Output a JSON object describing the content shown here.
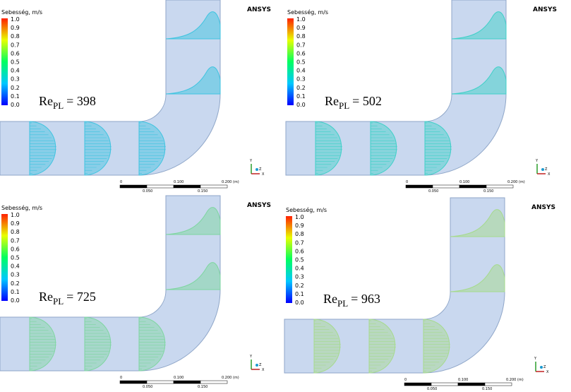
{
  "legend_title": "Sebesség, m/s",
  "colorbar_ticks": [
    "1.0",
    "0.9",
    "0.8",
    "0.7",
    "0.6",
    "0.5",
    "0.4",
    "0.3",
    "0.2",
    "0.1",
    "0.0"
  ],
  "brand": "ANSYS",
  "scale_bar": {
    "top": [
      "0",
      "0.100",
      "0.200 (m)"
    ],
    "bottom": [
      "0.050",
      "0.150"
    ]
  },
  "triad": [
    "Y",
    "X",
    "Z"
  ],
  "re_label": "Re",
  "re_subscript": "PL",
  "panels": [
    {
      "re_value": "= 398",
      "profile_color": "#3fc4e0"
    },
    {
      "re_value": "= 502",
      "profile_color": "#3fd0c8"
    },
    {
      "re_value": "= 725",
      "profile_color": "#7ed6a0"
    },
    {
      "re_value": "= 963",
      "profile_color": "#a6da8c"
    }
  ]
}
